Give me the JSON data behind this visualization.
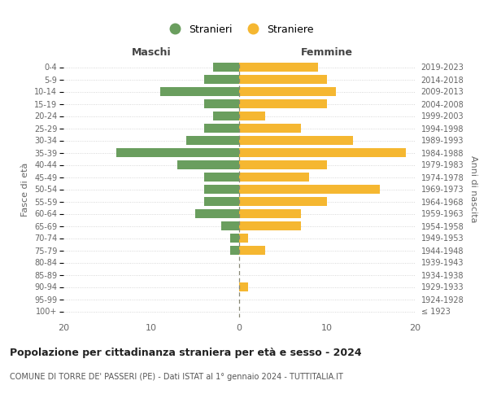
{
  "age_groups": [
    "100+",
    "95-99",
    "90-94",
    "85-89",
    "80-84",
    "75-79",
    "70-74",
    "65-69",
    "60-64",
    "55-59",
    "50-54",
    "45-49",
    "40-44",
    "35-39",
    "30-34",
    "25-29",
    "20-24",
    "15-19",
    "10-14",
    "5-9",
    "0-4"
  ],
  "birth_years": [
    "≤ 1923",
    "1924-1928",
    "1929-1933",
    "1934-1938",
    "1939-1943",
    "1944-1948",
    "1949-1953",
    "1954-1958",
    "1959-1963",
    "1964-1968",
    "1969-1973",
    "1974-1978",
    "1979-1983",
    "1984-1988",
    "1989-1993",
    "1994-1998",
    "1999-2003",
    "2004-2008",
    "2009-2013",
    "2014-2018",
    "2019-2023"
  ],
  "maschi": [
    0,
    0,
    0,
    0,
    0,
    1,
    1,
    2,
    5,
    4,
    4,
    4,
    7,
    14,
    6,
    4,
    3,
    4,
    9,
    4,
    3
  ],
  "femmine": [
    0,
    0,
    1,
    0,
    0,
    3,
    1,
    7,
    7,
    10,
    16,
    8,
    10,
    19,
    13,
    7,
    3,
    10,
    11,
    10,
    9
  ],
  "color_maschi": "#6a9e5e",
  "color_femmine": "#f5b731",
  "title": "Popolazione per cittadinanza straniera per età e sesso - 2024",
  "subtitle": "COMUNE DI TORRE DE' PASSERI (PE) - Dati ISTAT al 1° gennaio 2024 - TUTTITALIA.IT",
  "xlabel_left": "Maschi",
  "xlabel_right": "Femmine",
  "ylabel_left": "Fasce di età",
  "ylabel_right": "Anni di nascita",
  "legend_maschi": "Stranieri",
  "legend_femmine": "Straniere",
  "xlim": 20,
  "background_color": "#ffffff",
  "grid_color": "#cccccc"
}
